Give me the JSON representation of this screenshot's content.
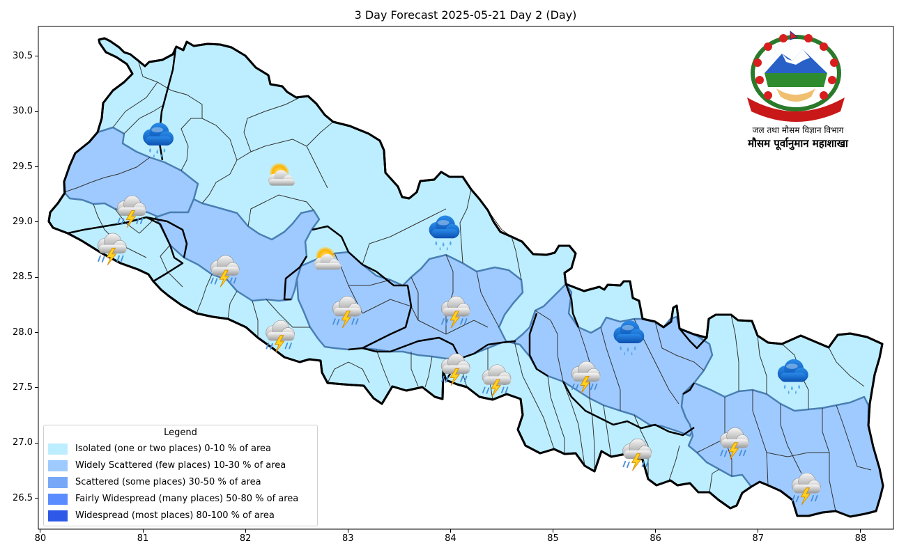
{
  "title": "3 Day Forecast 2025-05-21 Day 2 (Day)",
  "organization": {
    "name_line1": "जल तथा मौसम विज्ञान विभाग",
    "name_line2": "मौसम पूर्वानुमान महाशाखा",
    "emblem_icon": "nepal-government-emblem-icon"
  },
  "axes": {
    "x_ticks": [
      "80",
      "81",
      "82",
      "83",
      "84",
      "85",
      "86",
      "87",
      "88"
    ],
    "y_ticks": [
      "30.5",
      "30.0",
      "29.5",
      "29.0",
      "28.5",
      "28.0",
      "27.5",
      "27.0",
      "26.5"
    ],
    "xlim": [
      79.98,
      88.32
    ],
    "ylim": [
      26.22,
      30.77
    ]
  },
  "legend": {
    "title": "Legend",
    "items": [
      {
        "label": "Isolated (one or two places)  0-10 % of area",
        "color": "#bdeeff"
      },
      {
        "label": "Widely Scattered (few places) 10-30 % of area",
        "color": "#9fcaff"
      },
      {
        "label": "Scattered (some places) 30-50  % of area",
        "color": "#77a8f7"
      },
      {
        "label": "Fairly Widespread (many places) 50-80 % of area",
        "color": "#5b8cff"
      },
      {
        "label": "Widespread (most places) 80-100 % of area",
        "color": "#2e59e8"
      }
    ]
  },
  "colors": {
    "isolated": "#bdeeff",
    "widely_scattered": "#9fcaff",
    "district_border": "#333333",
    "province_border": "#000000",
    "zone_border": "#4a7fb4"
  },
  "weather_symbols": [
    {
      "icon": "rain-cloud-icon",
      "lon": 81.14,
      "lat": 29.74
    },
    {
      "icon": "sun-behind-cloud-icon",
      "lon": 82.33,
      "lat": 29.4
    },
    {
      "icon": "thunderstorm-rain-icon",
      "lon": 80.87,
      "lat": 29.08
    },
    {
      "icon": "thunderstorm-rain-icon",
      "lon": 80.68,
      "lat": 28.74
    },
    {
      "icon": "thunderstorm-rain-icon",
      "lon": 81.78,
      "lat": 28.54
    },
    {
      "icon": "sun-behind-cloud-icon",
      "lon": 82.78,
      "lat": 28.64
    },
    {
      "icon": "rain-cloud-icon",
      "lon": 83.93,
      "lat": 28.9
    },
    {
      "icon": "thunderstorm-rain-icon",
      "lon": 82.97,
      "lat": 28.17
    },
    {
      "icon": "thunderstorm-rain-icon",
      "lon": 84.03,
      "lat": 28.17
    },
    {
      "icon": "thunderstorm-rain-icon",
      "lon": 82.32,
      "lat": 27.95
    },
    {
      "icon": "thunderstorm-rain-icon",
      "lon": 84.03,
      "lat": 27.65
    },
    {
      "icon": "thunderstorm-rain-icon",
      "lon": 84.43,
      "lat": 27.55
    },
    {
      "icon": "thunderstorm-rain-icon",
      "lon": 85.3,
      "lat": 27.58
    },
    {
      "icon": "rain-cloud-icon",
      "lon": 85.73,
      "lat": 27.95
    },
    {
      "icon": "rain-cloud-icon",
      "lon": 87.33,
      "lat": 27.6
    },
    {
      "icon": "thunderstorm-rain-icon",
      "lon": 85.8,
      "lat": 26.88
    },
    {
      "icon": "thunderstorm-rain-icon",
      "lon": 86.75,
      "lat": 26.98
    },
    {
      "icon": "thunderstorm-rain-icon",
      "lon": 87.45,
      "lat": 26.57
    }
  ]
}
